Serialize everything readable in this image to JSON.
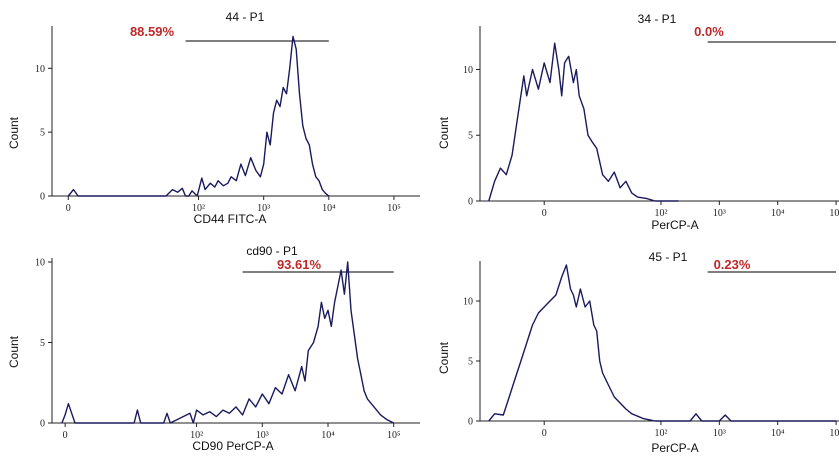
{
  "colors": {
    "trace": "#1a1a5e",
    "percent": "#c0282a",
    "axis": "#222222",
    "gate": "#333333"
  },
  "chart_data": [
    {
      "type": "line",
      "gate_name": "44 - P1",
      "gate_percent": "88.59%",
      "xlabel": "CD44 FITC-A",
      "ylabel": "Count",
      "scale": "log",
      "ylim": [
        0,
        13
      ],
      "y_ticks": [
        {
          "v": 0,
          "label": "0"
        },
        {
          "v": 5,
          "label": "5"
        },
        {
          "v": 10,
          "label": "10"
        }
      ],
      "x_ticks": [
        {
          "v": 0,
          "label": "0"
        },
        {
          "v": 2,
          "label": "10²"
        },
        {
          "v": 3,
          "label": "10³"
        },
        {
          "v": 4,
          "label": "10⁴"
        },
        {
          "v": 5,
          "label": "10⁵"
        }
      ],
      "gate_range": [
        1.8,
        4.0
      ],
      "x": [
        0.0,
        0.08,
        0.15,
        0.3,
        1.5,
        1.6,
        1.68,
        1.75,
        1.8,
        1.85,
        1.9,
        1.98,
        2.05,
        2.1,
        2.18,
        2.25,
        2.3,
        2.38,
        2.45,
        2.5,
        2.58,
        2.65,
        2.72,
        2.8,
        2.88,
        2.95,
        3.0,
        3.05,
        3.1,
        3.15,
        3.2,
        3.25,
        3.3,
        3.35,
        3.4,
        3.45,
        3.5,
        3.55,
        3.6,
        3.65,
        3.7,
        3.75,
        3.8,
        3.85,
        3.9,
        3.95,
        4.0
      ],
      "y": [
        0,
        0.5,
        0,
        0,
        0,
        0.5,
        0.3,
        0.6,
        0,
        0,
        0.4,
        0,
        1.4,
        0.5,
        1.0,
        0.7,
        1.2,
        0.8,
        1.0,
        1.5,
        1.2,
        2.5,
        1.6,
        3.0,
        2.0,
        1.5,
        2.5,
        5.0,
        4.0,
        6.5,
        7.5,
        7.0,
        8.5,
        8.0,
        10.0,
        12.5,
        11.5,
        8.0,
        5.5,
        4.5,
        4.0,
        2.5,
        1.5,
        1.2,
        0.5,
        0.2,
        0
      ]
    },
    {
      "type": "line",
      "gate_name": "34 - P1",
      "gate_percent": "0.0%",
      "xlabel": "PerCP-A",
      "ylabel": "Count",
      "scale": "biexponential",
      "ylim": [
        0,
        13
      ],
      "y_ticks": [
        {
          "v": 0,
          "label": "0"
        },
        {
          "v": 5,
          "label": "5"
        },
        {
          "v": 10,
          "label": "10"
        }
      ],
      "x_ticks": [
        {
          "v": 0,
          "label": "0"
        },
        {
          "v": 2,
          "label": "10²"
        },
        {
          "v": 3,
          "label": "10³"
        },
        {
          "v": 4,
          "label": "10⁴"
        },
        {
          "v": 5,
          "label": "10⁵"
        }
      ],
      "gate_range": [
        2.8,
        5.0
      ],
      "x": [
        -0.95,
        -0.85,
        -0.75,
        -0.65,
        -0.55,
        -0.45,
        -0.35,
        -0.3,
        -0.2,
        -0.1,
        0.0,
        0.1,
        0.18,
        0.25,
        0.3,
        0.35,
        0.42,
        0.5,
        0.55,
        0.6,
        0.68,
        0.75,
        0.82,
        0.9,
        1.0,
        1.1,
        1.2,
        1.3,
        1.4,
        1.5,
        1.6,
        1.75,
        1.9,
        2.1,
        2.3
      ],
      "y": [
        0,
        1.5,
        2.5,
        2.0,
        3.5,
        6.5,
        9.5,
        8.0,
        10.0,
        8.5,
        10.5,
        9.0,
        12.0,
        10.0,
        8.0,
        10.5,
        11.0,
        9.0,
        10.0,
        8.0,
        7.0,
        5.0,
        4.5,
        4.0,
        2.0,
        1.5,
        2.2,
        1.0,
        1.5,
        0.6,
        0.3,
        0.2,
        0,
        0,
        0
      ]
    },
    {
      "type": "line",
      "gate_name": "cd90 - P1",
      "gate_percent": "93.61%",
      "xlabel": "CD90 PerCP-A",
      "ylabel": "Count",
      "scale": "log",
      "ylim": [
        0,
        10
      ],
      "y_ticks": [
        {
          "v": 0,
          "label": "0"
        },
        {
          "v": 5,
          "label": "5"
        },
        {
          "v": 10,
          "label": "10"
        }
      ],
      "x_ticks": [
        {
          "v": 0,
          "label": "0"
        },
        {
          "v": 2,
          "label": "10²"
        },
        {
          "v": 3,
          "label": "10³"
        },
        {
          "v": 4,
          "label": "10⁴"
        },
        {
          "v": 5,
          "label": "10⁵"
        }
      ],
      "gate_range": [
        2.7,
        5.0
      ],
      "x": [
        -0.05,
        0.0,
        0.05,
        0.1,
        0.15,
        0.2,
        1.05,
        1.1,
        1.15,
        1.2,
        1.5,
        1.55,
        1.6,
        1.9,
        1.95,
        2.0,
        2.1,
        2.2,
        2.3,
        2.4,
        2.5,
        2.6,
        2.7,
        2.8,
        2.9,
        3.0,
        3.1,
        3.2,
        3.3,
        3.4,
        3.5,
        3.6,
        3.65,
        3.7,
        3.78,
        3.85,
        3.9,
        3.95,
        4.0,
        4.05,
        4.1,
        4.15,
        4.2,
        4.25,
        4.3,
        4.35,
        4.4,
        4.45,
        4.5,
        4.55,
        4.6,
        4.7,
        4.8,
        4.9,
        5.0
      ],
      "y": [
        0,
        0.5,
        1.2,
        0.6,
        0,
        0,
        0,
        0.8,
        0,
        0,
        0,
        0.6,
        0,
        0.6,
        0,
        0.8,
        0.5,
        0.7,
        0.4,
        0.8,
        0.6,
        1.0,
        0.5,
        1.5,
        1.0,
        1.8,
        1.2,
        2.2,
        1.8,
        3.0,
        2.0,
        3.5,
        2.6,
        4.5,
        5.0,
        6.0,
        7.5,
        6.5,
        7.0,
        6.0,
        7.5,
        8.5,
        9.5,
        8.0,
        10.0,
        7.0,
        5.5,
        4.0,
        3.0,
        2.0,
        1.5,
        1.0,
        0.5,
        0.2,
        0
      ]
    },
    {
      "type": "line",
      "gate_name": "45 - P1",
      "gate_percent": "0.23%",
      "xlabel": "PerCP-A",
      "ylabel": "Count",
      "scale": "biexponential",
      "ylim": [
        0,
        13
      ],
      "y_ticks": [
        {
          "v": 0,
          "label": "0"
        },
        {
          "v": 5,
          "label": "5"
        },
        {
          "v": 10,
          "label": "10"
        }
      ],
      "x_ticks": [
        {
          "v": 0,
          "label": "0"
        },
        {
          "v": 2,
          "label": "10²"
        },
        {
          "v": 3,
          "label": "10³"
        },
        {
          "v": 4,
          "label": "10⁴"
        },
        {
          "v": 5,
          "label": "10⁵"
        }
      ],
      "gate_range": [
        2.8,
        5.0
      ],
      "x": [
        -0.95,
        -0.85,
        -0.7,
        -0.6,
        -0.5,
        -0.4,
        -0.3,
        -0.2,
        -0.1,
        0.0,
        0.1,
        0.2,
        0.3,
        0.38,
        0.45,
        0.5,
        0.55,
        0.62,
        0.7,
        0.78,
        0.85,
        0.9,
        0.95,
        1.0,
        1.1,
        1.2,
        1.3,
        1.4,
        1.5,
        1.6,
        1.7,
        1.8,
        1.9,
        2.5,
        2.6,
        2.7,
        3.0,
        3.1,
        3.2,
        5.0
      ],
      "y": [
        0,
        0.6,
        0.5,
        2.0,
        3.5,
        5.0,
        6.5,
        8.0,
        9.0,
        9.5,
        10.0,
        10.5,
        12.0,
        13.0,
        11.0,
        10.5,
        9.5,
        11.0,
        9.5,
        10.0,
        8.0,
        7.5,
        5.0,
        4.0,
        3.0,
        2.0,
        1.5,
        1.0,
        0.6,
        0.4,
        0.2,
        0.1,
        0,
        0,
        0.6,
        0,
        0,
        0.5,
        0,
        0
      ]
    }
  ]
}
